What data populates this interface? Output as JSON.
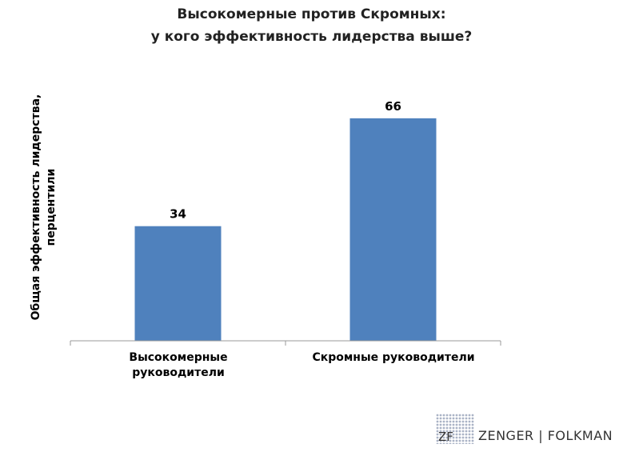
{
  "chart_data": {
    "type": "bar",
    "title": "Высокомерные против Скромных:\nу кого эффективность лидерства выше?",
    "title_lines": [
      "Высокомерные против Скромных:",
      "у кого эффективность лидерства выше?"
    ],
    "ylabel_lines": [
      "Общая эффективность лидерства,",
      "перцентили"
    ],
    "categories": [
      "Высокомерные руководители",
      "Скромные руководители"
    ],
    "category_lines": [
      [
        "Высокомерные",
        "руководители"
      ],
      [
        "Скромные руководители"
      ]
    ],
    "values": [
      34,
      66
    ],
    "data_labels": [
      "34",
      "66"
    ],
    "ylim": [
      0,
      70
    ],
    "grid": false,
    "bar_color": "#4F81BD"
  },
  "logo": {
    "initials": "ZF",
    "text": "ZENGER | FOLKMAN"
  }
}
